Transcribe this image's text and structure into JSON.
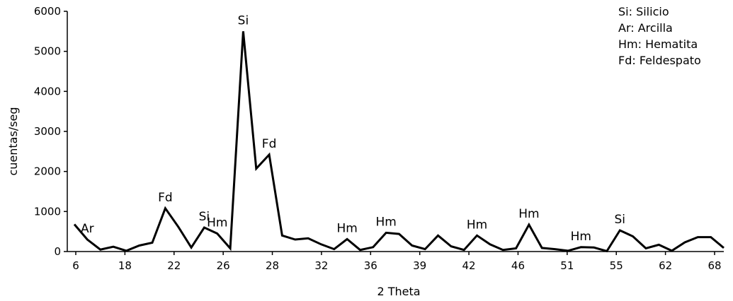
{
  "chart_data": {
    "type": "line",
    "title": "",
    "xlabel": "2 Theta",
    "ylabel": "cuentas/seg",
    "ylim": [
      0,
      6000
    ],
    "yticks": [
      0,
      1000,
      2000,
      3000,
      4000,
      5000,
      6000
    ],
    "xtick_labels": [
      "6",
      "18",
      "22",
      "26",
      "28",
      "32",
      "36",
      "39",
      "42",
      "46",
      "51",
      "55",
      "62",
      "68"
    ],
    "grid": false,
    "series": [
      {
        "values": [
          680,
          300,
          50,
          120,
          20,
          150,
          220,
          1080,
          620,
          100,
          600,
          450,
          80,
          5500,
          2070,
          2420,
          400,
          300,
          330,
          180,
          60,
          310,
          40,
          110,
          470,
          440,
          150,
          60,
          400,
          130,
          40,
          400,
          180,
          40,
          80,
          670,
          90,
          60,
          20,
          110,
          100,
          10,
          530,
          380,
          80,
          170,
          20,
          230,
          360,
          360,
          90
        ],
        "color": "#000000"
      }
    ],
    "annotations": [
      {
        "text": "Ar",
        "index": 1,
        "value": 300
      },
      {
        "text": "Fd",
        "index": 7,
        "value": 1080
      },
      {
        "text": "Si",
        "index": 10,
        "value": 600
      },
      {
        "text": "Hm",
        "index": 11,
        "value": 450
      },
      {
        "text": "Si",
        "index": 13,
        "value": 5500
      },
      {
        "text": "Fd",
        "index": 15,
        "value": 2420
      },
      {
        "text": "Hm",
        "index": 21,
        "value": 310
      },
      {
        "text": "Hm",
        "index": 24,
        "value": 470
      },
      {
        "text": "Hm",
        "index": 31,
        "value": 400
      },
      {
        "text": "Hm",
        "index": 35,
        "value": 670
      },
      {
        "text": "Hm",
        "index": 39,
        "value": 110
      },
      {
        "text": "Si",
        "index": 42,
        "value": 530
      }
    ],
    "legend": {
      "position": "top-right",
      "entries": [
        "Si: Silicio",
        "Ar: Arcilla",
        "Hm: Hematita",
        "Fd: Feldespato"
      ]
    }
  }
}
